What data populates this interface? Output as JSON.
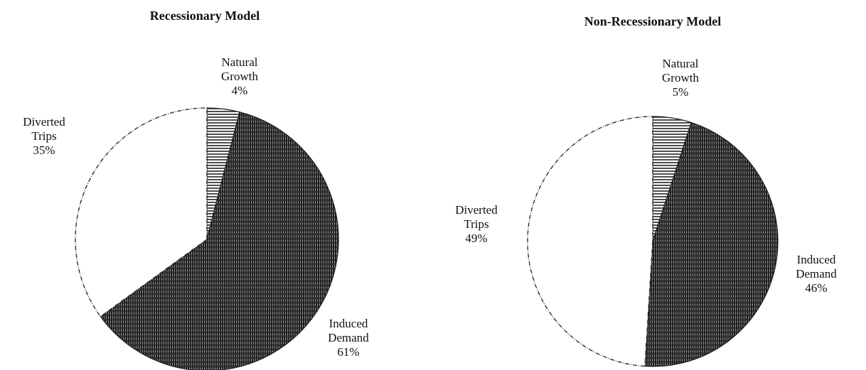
{
  "chart_data": [
    {
      "type": "pie",
      "title": "Recessionary Model",
      "categories": [
        "Natural Growth",
        "Induced Demand",
        "Diverted Trips"
      ],
      "values": [
        4,
        61,
        35
      ],
      "value_labels": [
        "4%",
        "61%",
        "35%"
      ]
    },
    {
      "type": "pie",
      "title": "Non-Recessionary Model",
      "categories": [
        "Natural Growth",
        "Induced Demand",
        "Diverted Trips"
      ],
      "values": [
        5,
        46,
        49
      ],
      "value_labels": [
        "5%",
        "46%",
        "49%"
      ]
    }
  ]
}
